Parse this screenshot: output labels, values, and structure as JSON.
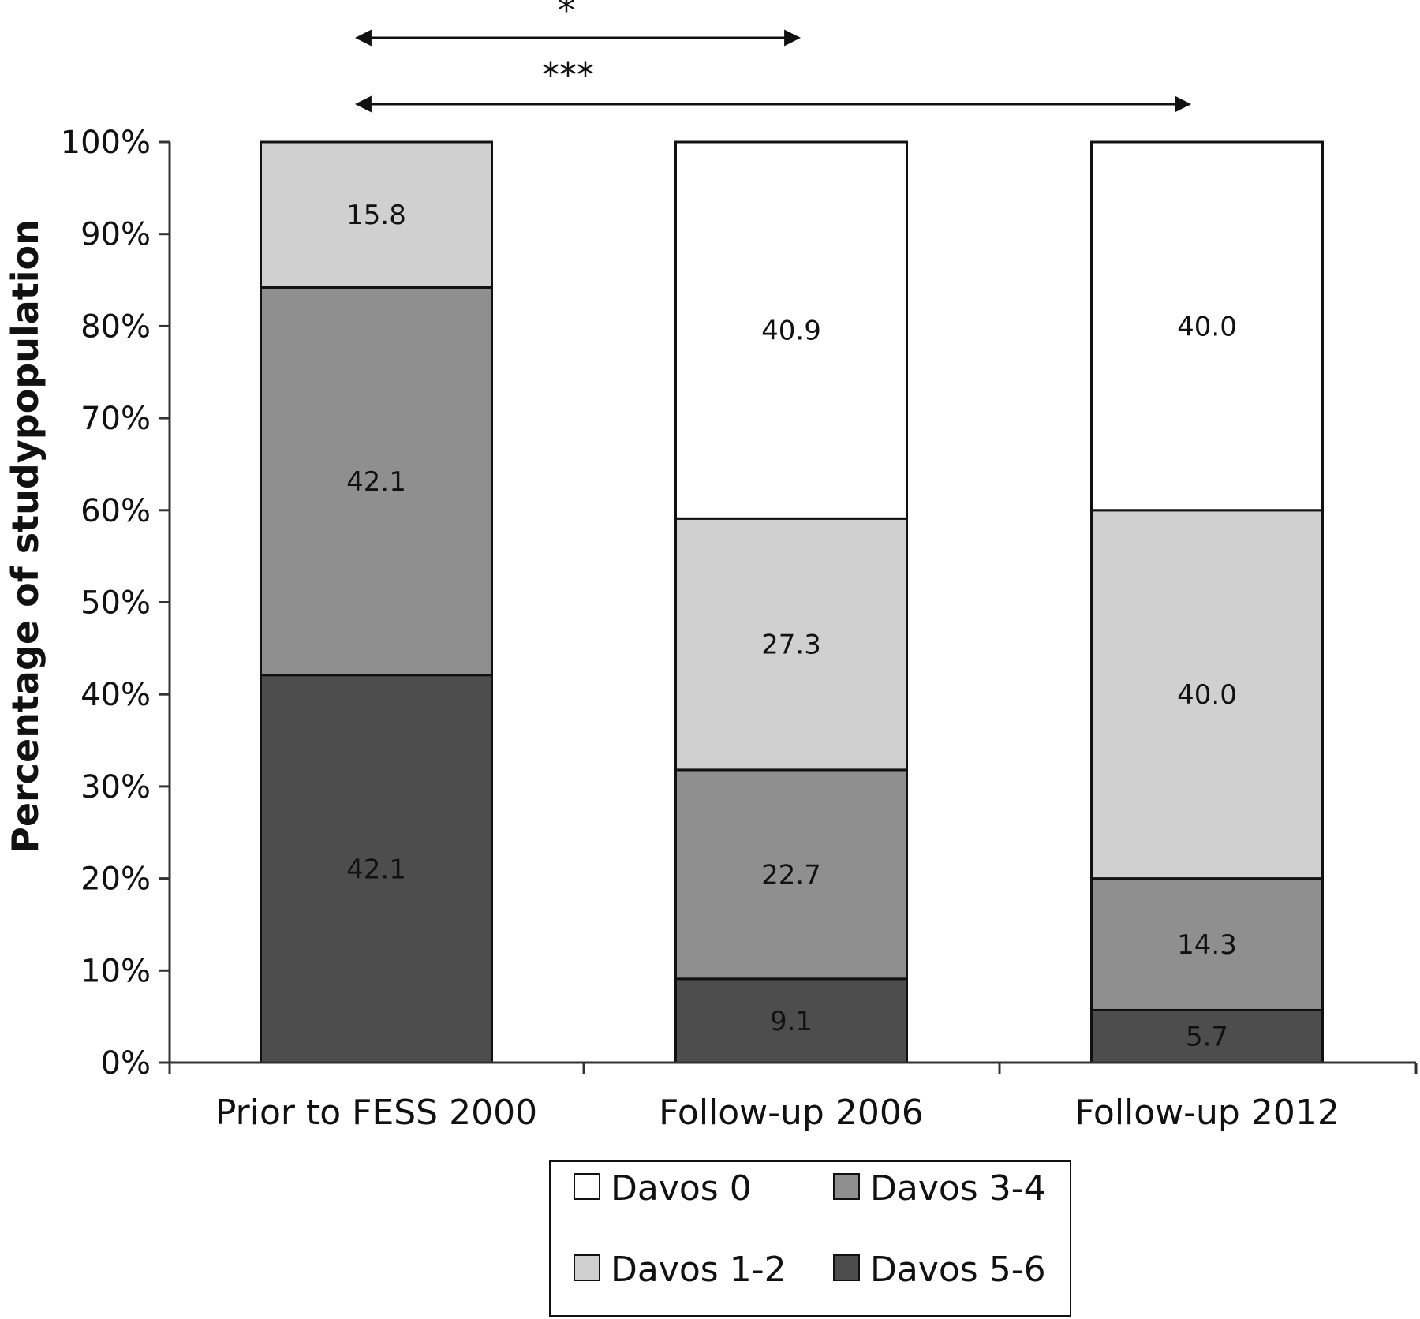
{
  "chart_data": {
    "type": "bar",
    "stacked": true,
    "title": "",
    "xlabel": "",
    "ylabel": "Percentage of studypopulation",
    "ylim": [
      0,
      100
    ],
    "yticks": [
      "0%",
      "10%",
      "20%",
      "30%",
      "40%",
      "50%",
      "60%",
      "70%",
      "80%",
      "90%",
      "100%"
    ],
    "categories": [
      "Prior to FESS 2000",
      "Follow-up 2006",
      "Follow-up 2012"
    ],
    "series": [
      {
        "name": "Davos 5-6",
        "color": "#4d4d4d",
        "values": [
          42.1,
          9.1,
          5.7
        ],
        "labels": [
          "42.1",
          "9.1",
          "5.7"
        ]
      },
      {
        "name": "Davos 3-4",
        "color": "#8f8f8f",
        "values": [
          42.1,
          22.7,
          14.3
        ],
        "labels": [
          "42.1",
          "22.7",
          "14.3"
        ]
      },
      {
        "name": "Davos 1-2",
        "color": "#d0d0d0",
        "values": [
          15.8,
          27.3,
          40.0
        ],
        "labels": [
          "15.8",
          "27.3",
          "40.0"
        ]
      },
      {
        "name": "Davos 0",
        "color": "#ffffff",
        "values": [
          0,
          40.9,
          40.0
        ],
        "labels": [
          "",
          "40.9",
          "40.0"
        ]
      }
    ],
    "significance": [
      {
        "label": "*",
        "from": "Prior to FESS 2000",
        "to": "Follow-up 2006"
      },
      {
        "label": "***",
        "from": "Prior to FESS 2000",
        "to": "Follow-up 2012"
      }
    ],
    "legend": {
      "placement": "bottom",
      "items": [
        "Davos 0",
        "Davos 3-4",
        "Davos 1-2",
        "Davos 5-6"
      ]
    },
    "grid": false
  }
}
